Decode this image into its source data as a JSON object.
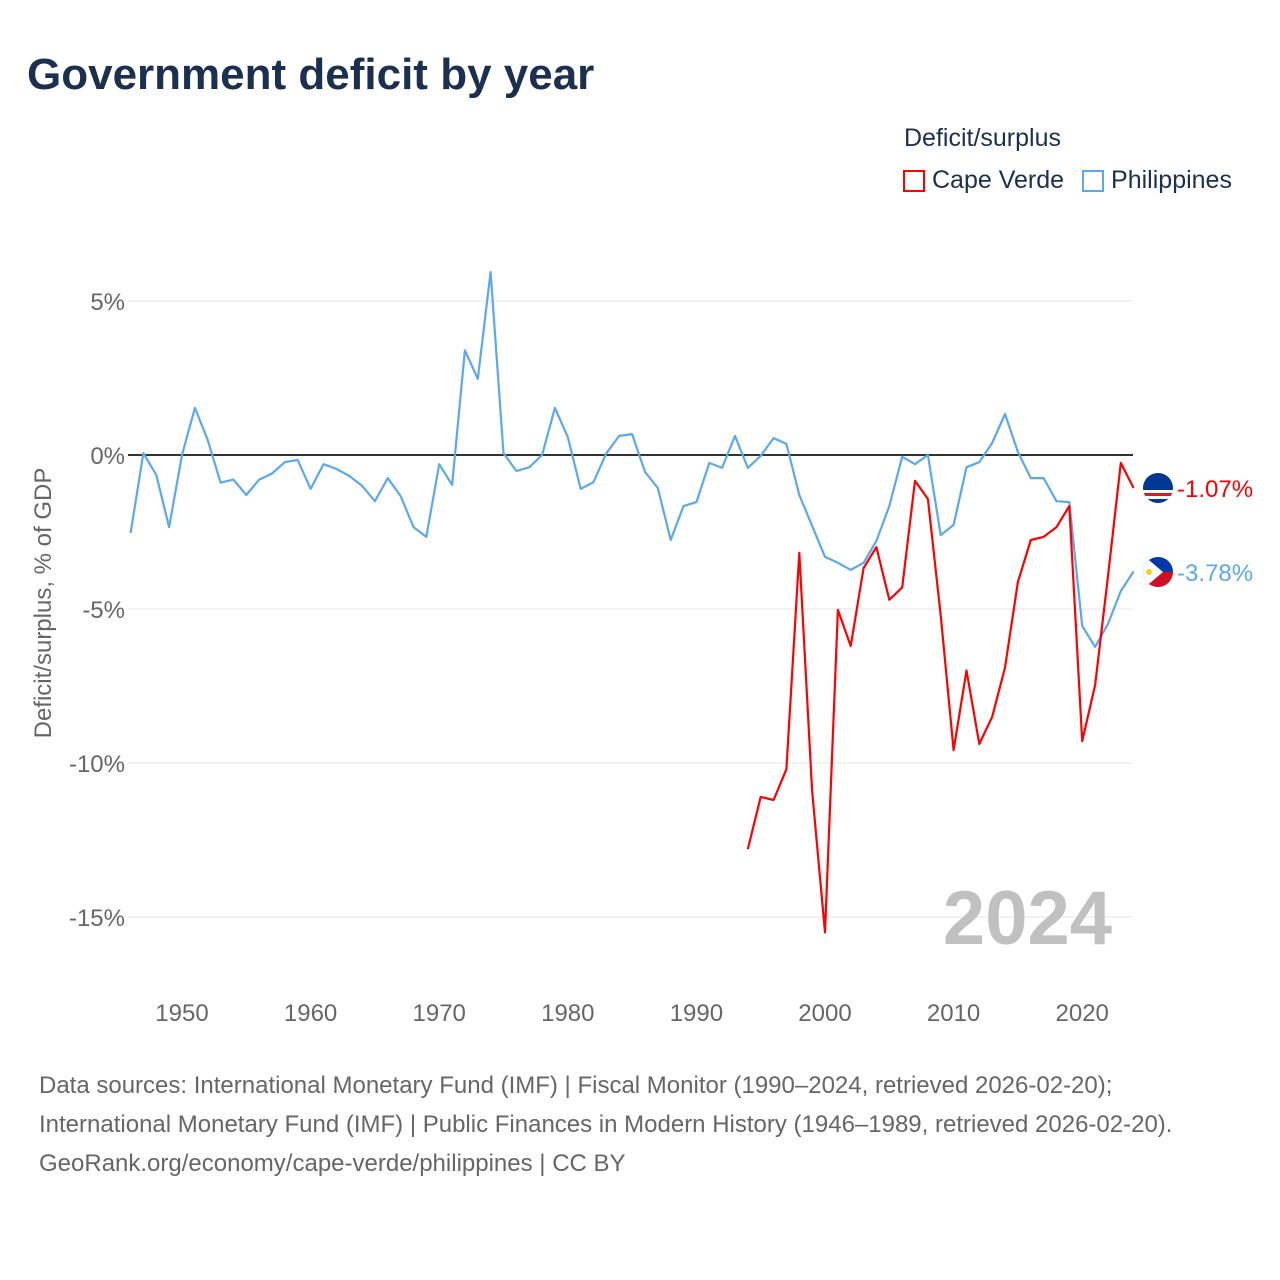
{
  "title": "Government deficit by year",
  "legend": {
    "title": "Deficit/surplus"
  },
  "colors": {
    "cape_verde": "#ff0000",
    "philippines": "#5ca8ef",
    "grid": "#e6e6e6",
    "zero": "#333333",
    "watermark": "#c0c0c0"
  },
  "chart_data": {
    "type": "line",
    "title": "Government deficit by year",
    "ylabel": "Deficit/surplus, % of GDP",
    "xlabel": "",
    "xlim": [
      1946,
      2024
    ],
    "ylim": [
      -17,
      7
    ],
    "x_ticks": [
      1950,
      1960,
      1970,
      1980,
      1990,
      2000,
      2010,
      2020
    ],
    "y_ticks": [
      5,
      0,
      -5,
      -10,
      -15
    ],
    "y_tick_labels": [
      "5%",
      "0%",
      "-5%",
      "-10%",
      "-15%"
    ],
    "x_tick_labels": [
      "1950",
      "1960",
      "1970",
      "1980",
      "1990",
      "2000",
      "2010",
      "2020"
    ],
    "year_watermark": "2024",
    "series": [
      {
        "name": "Cape Verde",
        "color": "#ff0000",
        "end_label": "-1.07%",
        "start_year": 1994,
        "values": [
          -12.8,
          -11.1,
          -11.2,
          -10.2,
          -3.18,
          -10.9,
          -15.5,
          -5.03,
          -6.2,
          -3.67,
          -2.99,
          -4.7,
          -4.3,
          -0.84,
          -1.43,
          -5.2,
          -9.58,
          -7.0,
          -9.38,
          -8.5,
          -6.9,
          -4.12,
          -2.76,
          -2.66,
          -2.34,
          -1.66,
          -9.29,
          -7.47,
          -3.96,
          -0.26,
          -1.07
        ]
      },
      {
        "name": "Philippines",
        "color": "#5ca8ef",
        "end_label": "-3.78%",
        "start_year": 1946,
        "values": [
          -2.53,
          0.06,
          -0.65,
          -2.34,
          0,
          1.53,
          0.49,
          -0.9,
          -0.8,
          -1.3,
          -0.8,
          -0.6,
          -0.23,
          -0.16,
          -1.1,
          -0.3,
          -0.45,
          -0.68,
          -1.0,
          -1.5,
          -0.75,
          -1.33,
          -2.34,
          -2.66,
          -0.3,
          -0.97,
          3.4,
          2.47,
          5.94,
          0.06,
          -0.52,
          -0.4,
          0,
          1.53,
          0.58,
          -1.1,
          -0.88,
          0.06,
          0.62,
          0.68,
          -0.55,
          -1.07,
          -2.76,
          -1.66,
          -1.53,
          -0.26,
          -0.42,
          0.62,
          -0.42,
          -0.03,
          0.55,
          0.36,
          -1.3,
          -2.3,
          -3.31,
          -3.5,
          -3.73,
          -3.5,
          -2.79,
          -1.66,
          -0.06,
          -0.3,
          0,
          -2.6,
          -2.27,
          -0.4,
          -0.23,
          0.39,
          1.33,
          0.1,
          -0.75,
          -0.75,
          -1.5,
          -1.53,
          -5.55,
          -6.23,
          -5.49,
          -4.42,
          -3.78
        ]
      }
    ]
  },
  "footer": {
    "sources": "Data sources: International Monetary Fund (IMF) | Fiscal Monitor (1990–2024, retrieved 2026-02-20); International Monetary Fund (IMF) | Public Finances in Modern History (1946–1989, retrieved 2026-02-20).",
    "credit": "GeoRank.org/economy/cape-verde/philippines | CC BY"
  }
}
